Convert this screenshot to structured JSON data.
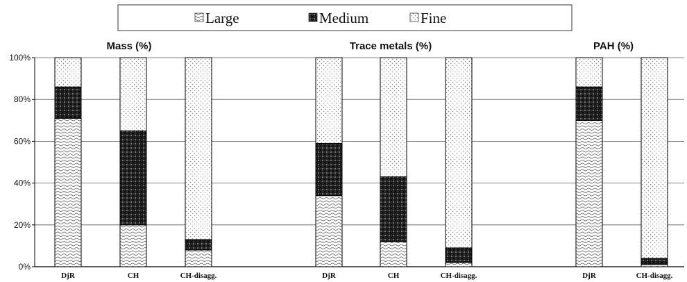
{
  "chart_data": {
    "type": "bar",
    "stacked": true,
    "normalized": true,
    "legend": {
      "placement": "top-center",
      "entries": [
        {
          "name": "Large",
          "pattern": "large"
        },
        {
          "name": "Medium",
          "pattern": "medium"
        },
        {
          "name": "Fine",
          "pattern": "fine"
        }
      ]
    },
    "y_axis": {
      "min": 0,
      "max": 100,
      "ticks": [
        0,
        20,
        40,
        60,
        80,
        100
      ],
      "tick_labels": [
        "0%",
        "20%",
        "40%",
        "60%",
        "80%",
        "100%"
      ],
      "grid": true
    },
    "panels": [
      {
        "title": "Mass (%)",
        "categories": [
          "DjR",
          "CH",
          "CH-disagg."
        ],
        "series": [
          {
            "name": "Large",
            "values": [
              71,
              20,
              8
            ]
          },
          {
            "name": "Medium",
            "values": [
              15,
              45,
              5
            ]
          },
          {
            "name": "Fine",
            "values": [
              14,
              35,
              87
            ]
          }
        ]
      },
      {
        "title": "Trace metals (%)",
        "categories": [
          "DjR",
          "CH",
          "CH-disagg."
        ],
        "series": [
          {
            "name": "Large",
            "values": [
              34,
              12,
              2
            ]
          },
          {
            "name": "Medium",
            "values": [
              25,
              31,
              7
            ]
          },
          {
            "name": "Fine",
            "values": [
              41,
              57,
              91
            ]
          }
        ]
      },
      {
        "title": "PAH (%)",
        "categories": [
          "DjR",
          "CH-disagg."
        ],
        "series": [
          {
            "name": "Large",
            "values": [
              70,
              1
            ]
          },
          {
            "name": "Medium",
            "values": [
              16,
              3
            ]
          },
          {
            "name": "Fine",
            "values": [
              14,
              96
            ]
          }
        ]
      }
    ]
  }
}
